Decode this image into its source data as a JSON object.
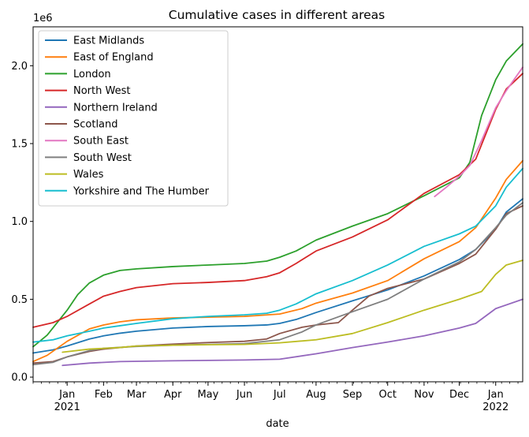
{
  "chart_data": {
    "type": "line",
    "title": "Cumulative cases in different areas",
    "xlabel": "date",
    "ylabel": "",
    "y_offset_label": "1e6",
    "y_ticks": [
      0.0,
      0.5,
      1.0,
      1.5,
      2.0
    ],
    "y_tick_labels": [
      "0.0",
      "0.5",
      "1.0",
      "1.5",
      "2.0"
    ],
    "ylim": [
      -0.03,
      2.25
    ],
    "xlim": [
      "2020-12-03",
      "2022-01-24"
    ],
    "x_ticks": [
      "2021-01-01",
      "2021-02-01",
      "2021-03-01",
      "2021-04-01",
      "2021-05-01",
      "2021-06-01",
      "2021-07-01",
      "2021-08-01",
      "2021-09-01",
      "2021-10-01",
      "2021-11-01",
      "2021-12-01",
      "2022-01-01"
    ],
    "x_tick_labels": [
      "Jan",
      "Feb",
      "Mar",
      "Apr",
      "May",
      "Jun",
      "Jul",
      "Aug",
      "Sep",
      "Oct",
      "Nov",
      "Dec",
      "Jan"
    ],
    "x_year_labels": [
      {
        "at": "2021-01-01",
        "text": "2021"
      },
      {
        "at": "2022-01-01",
        "text": "2022"
      }
    ],
    "legend_position": "upper-left",
    "grid": false,
    "series": [
      {
        "name": "East Midlands",
        "color": "#1f77b4",
        "points": [
          [
            "2020-12-03",
            0.155
          ],
          [
            "2020-12-20",
            0.175
          ],
          [
            "2021-01-01",
            0.2
          ],
          [
            "2021-01-20",
            0.245
          ],
          [
            "2021-02-01",
            0.265
          ],
          [
            "2021-02-15",
            0.282
          ],
          [
            "2021-03-01",
            0.295
          ],
          [
            "2021-04-01",
            0.315
          ],
          [
            "2021-05-01",
            0.325
          ],
          [
            "2021-06-01",
            0.33
          ],
          [
            "2021-06-20",
            0.335
          ],
          [
            "2021-07-01",
            0.345
          ],
          [
            "2021-07-15",
            0.37
          ],
          [
            "2021-08-01",
            0.415
          ],
          [
            "2021-09-01",
            0.49
          ],
          [
            "2021-10-01",
            0.56
          ],
          [
            "2021-11-01",
            0.65
          ],
          [
            "2021-12-01",
            0.755
          ],
          [
            "2021-12-15",
            0.82
          ],
          [
            "2022-01-01",
            0.95
          ],
          [
            "2022-01-10",
            1.06
          ],
          [
            "2022-01-24",
            1.145
          ]
        ]
      },
      {
        "name": "East of England",
        "color": "#ff7f0e",
        "points": [
          [
            "2020-12-03",
            0.1
          ],
          [
            "2020-12-15",
            0.14
          ],
          [
            "2021-01-01",
            0.23
          ],
          [
            "2021-01-20",
            0.31
          ],
          [
            "2021-02-01",
            0.335
          ],
          [
            "2021-02-15",
            0.355
          ],
          [
            "2021-03-01",
            0.368
          ],
          [
            "2021-04-01",
            0.38
          ],
          [
            "2021-05-01",
            0.385
          ],
          [
            "2021-06-01",
            0.39
          ],
          [
            "2021-07-01",
            0.405
          ],
          [
            "2021-07-20",
            0.44
          ],
          [
            "2021-08-01",
            0.475
          ],
          [
            "2021-09-01",
            0.54
          ],
          [
            "2021-10-01",
            0.62
          ],
          [
            "2021-11-01",
            0.76
          ],
          [
            "2021-12-01",
            0.87
          ],
          [
            "2021-12-15",
            0.96
          ],
          [
            "2022-01-01",
            1.15
          ],
          [
            "2022-01-10",
            1.27
          ],
          [
            "2022-01-24",
            1.39
          ]
        ]
      },
      {
        "name": "London",
        "color": "#2ca02c",
        "points": [
          [
            "2020-12-03",
            0.195
          ],
          [
            "2020-12-15",
            0.27
          ],
          [
            "2021-01-01",
            0.43
          ],
          [
            "2021-01-10",
            0.53
          ],
          [
            "2021-01-20",
            0.605
          ],
          [
            "2021-02-01",
            0.655
          ],
          [
            "2021-02-15",
            0.685
          ],
          [
            "2021-03-01",
            0.695
          ],
          [
            "2021-04-01",
            0.71
          ],
          [
            "2021-05-01",
            0.72
          ],
          [
            "2021-06-01",
            0.73
          ],
          [
            "2021-06-20",
            0.745
          ],
          [
            "2021-07-01",
            0.77
          ],
          [
            "2021-07-15",
            0.81
          ],
          [
            "2021-08-01",
            0.88
          ],
          [
            "2021-09-01",
            0.97
          ],
          [
            "2021-10-01",
            1.05
          ],
          [
            "2021-11-01",
            1.165
          ],
          [
            "2021-12-01",
            1.28
          ],
          [
            "2021-12-10",
            1.38
          ],
          [
            "2021-12-20",
            1.68
          ],
          [
            "2022-01-01",
            1.91
          ],
          [
            "2022-01-10",
            2.03
          ],
          [
            "2022-01-24",
            2.14
          ]
        ]
      },
      {
        "name": "North West",
        "color": "#d62728",
        "points": [
          [
            "2020-12-03",
            0.32
          ],
          [
            "2020-12-20",
            0.35
          ],
          [
            "2021-01-01",
            0.39
          ],
          [
            "2021-01-20",
            0.47
          ],
          [
            "2021-02-01",
            0.52
          ],
          [
            "2021-02-15",
            0.55
          ],
          [
            "2021-03-01",
            0.575
          ],
          [
            "2021-04-01",
            0.6
          ],
          [
            "2021-05-01",
            0.608
          ],
          [
            "2021-06-01",
            0.62
          ],
          [
            "2021-06-20",
            0.645
          ],
          [
            "2021-07-01",
            0.67
          ],
          [
            "2021-07-15",
            0.73
          ],
          [
            "2021-08-01",
            0.81
          ],
          [
            "2021-09-01",
            0.9
          ],
          [
            "2021-10-01",
            1.01
          ],
          [
            "2021-11-01",
            1.18
          ],
          [
            "2021-12-01",
            1.3
          ],
          [
            "2021-12-15",
            1.4
          ],
          [
            "2022-01-01",
            1.72
          ],
          [
            "2022-01-10",
            1.85
          ],
          [
            "2022-01-24",
            1.95
          ]
        ]
      },
      {
        "name": "Northern Ireland",
        "color": "#9467bd",
        "points": [
          [
            "2020-12-28",
            0.075
          ],
          [
            "2021-01-20",
            0.09
          ],
          [
            "2021-02-15",
            0.1
          ],
          [
            "2021-04-01",
            0.105
          ],
          [
            "2021-06-01",
            0.11
          ],
          [
            "2021-07-01",
            0.115
          ],
          [
            "2021-08-01",
            0.15
          ],
          [
            "2021-09-01",
            0.19
          ],
          [
            "2021-10-01",
            0.225
          ],
          [
            "2021-11-01",
            0.265
          ],
          [
            "2021-12-01",
            0.315
          ],
          [
            "2021-12-15",
            0.345
          ],
          [
            "2022-01-01",
            0.44
          ],
          [
            "2022-01-24",
            0.5
          ]
        ]
      },
      {
        "name": "Scotland",
        "color": "#8c564b",
        "points": [
          [
            "2020-12-03",
            0.09
          ],
          [
            "2020-12-20",
            0.1
          ],
          [
            "2021-01-01",
            0.13
          ],
          [
            "2021-01-20",
            0.165
          ],
          [
            "2021-02-01",
            0.18
          ],
          [
            "2021-03-01",
            0.2
          ],
          [
            "2021-04-01",
            0.212
          ],
          [
            "2021-05-01",
            0.222
          ],
          [
            "2021-06-01",
            0.23
          ],
          [
            "2021-06-20",
            0.245
          ],
          [
            "2021-07-01",
            0.28
          ],
          [
            "2021-07-20",
            0.32
          ],
          [
            "2021-08-01",
            0.335
          ],
          [
            "2021-08-20",
            0.35
          ],
          [
            "2021-09-01",
            0.43
          ],
          [
            "2021-09-15",
            0.52
          ],
          [
            "2021-10-01",
            0.57
          ],
          [
            "2021-11-01",
            0.63
          ],
          [
            "2021-12-01",
            0.73
          ],
          [
            "2021-12-15",
            0.79
          ],
          [
            "2022-01-01",
            0.95
          ],
          [
            "2022-01-10",
            1.05
          ],
          [
            "2022-01-24",
            1.1
          ]
        ]
      },
      {
        "name": "South East",
        "color": "#e377c2",
        "points": [
          [
            "2021-11-10",
            1.16
          ],
          [
            "2021-11-20",
            1.22
          ],
          [
            "2021-12-01",
            1.29
          ],
          [
            "2021-12-10",
            1.36
          ],
          [
            "2021-12-20",
            1.52
          ],
          [
            "2022-01-01",
            1.73
          ],
          [
            "2022-01-10",
            1.84
          ],
          [
            "2022-01-24",
            1.99
          ]
        ]
      },
      {
        "name": "South West",
        "color": "#7f7f7f",
        "points": [
          [
            "2020-12-03",
            0.08
          ],
          [
            "2020-12-20",
            0.095
          ],
          [
            "2021-01-01",
            0.13
          ],
          [
            "2021-01-20",
            0.17
          ],
          [
            "2021-02-01",
            0.185
          ],
          [
            "2021-03-01",
            0.197
          ],
          [
            "2021-04-01",
            0.205
          ],
          [
            "2021-05-01",
            0.21
          ],
          [
            "2021-06-01",
            0.215
          ],
          [
            "2021-07-01",
            0.24
          ],
          [
            "2021-07-20",
            0.29
          ],
          [
            "2021-08-01",
            0.335
          ],
          [
            "2021-09-01",
            0.42
          ],
          [
            "2021-10-01",
            0.5
          ],
          [
            "2021-11-01",
            0.63
          ],
          [
            "2021-12-01",
            0.74
          ],
          [
            "2021-12-15",
            0.82
          ],
          [
            "2022-01-01",
            0.96
          ],
          [
            "2022-01-10",
            1.04
          ],
          [
            "2022-01-24",
            1.12
          ]
        ]
      },
      {
        "name": "Wales",
        "color": "#bcbd22",
        "points": [
          [
            "2020-12-28",
            0.16
          ],
          [
            "2021-01-20",
            0.18
          ],
          [
            "2021-02-15",
            0.19
          ],
          [
            "2021-03-01",
            0.2
          ],
          [
            "2021-04-01",
            0.205
          ],
          [
            "2021-05-01",
            0.208
          ],
          [
            "2021-06-01",
            0.21
          ],
          [
            "2021-07-01",
            0.22
          ],
          [
            "2021-08-01",
            0.24
          ],
          [
            "2021-09-01",
            0.28
          ],
          [
            "2021-10-01",
            0.35
          ],
          [
            "2021-11-01",
            0.43
          ],
          [
            "2021-12-01",
            0.5
          ],
          [
            "2021-12-20",
            0.55
          ],
          [
            "2022-01-01",
            0.66
          ],
          [
            "2022-01-10",
            0.72
          ],
          [
            "2022-01-24",
            0.75
          ]
        ]
      },
      {
        "name": "Yorkshire and The Humber",
        "color": "#17becf",
        "points": [
          [
            "2020-12-03",
            0.225
          ],
          [
            "2020-12-20",
            0.24
          ],
          [
            "2021-01-01",
            0.265
          ],
          [
            "2021-01-20",
            0.295
          ],
          [
            "2021-02-01",
            0.315
          ],
          [
            "2021-02-15",
            0.33
          ],
          [
            "2021-03-01",
            0.345
          ],
          [
            "2021-04-01",
            0.375
          ],
          [
            "2021-05-01",
            0.39
          ],
          [
            "2021-06-01",
            0.4
          ],
          [
            "2021-06-20",
            0.41
          ],
          [
            "2021-07-01",
            0.43
          ],
          [
            "2021-07-15",
            0.47
          ],
          [
            "2021-08-01",
            0.535
          ],
          [
            "2021-09-01",
            0.62
          ],
          [
            "2021-10-01",
            0.72
          ],
          [
            "2021-11-01",
            0.84
          ],
          [
            "2021-12-01",
            0.92
          ],
          [
            "2021-12-15",
            0.97
          ],
          [
            "2022-01-01",
            1.1
          ],
          [
            "2022-01-10",
            1.22
          ],
          [
            "2022-01-24",
            1.34
          ]
        ]
      }
    ]
  }
}
